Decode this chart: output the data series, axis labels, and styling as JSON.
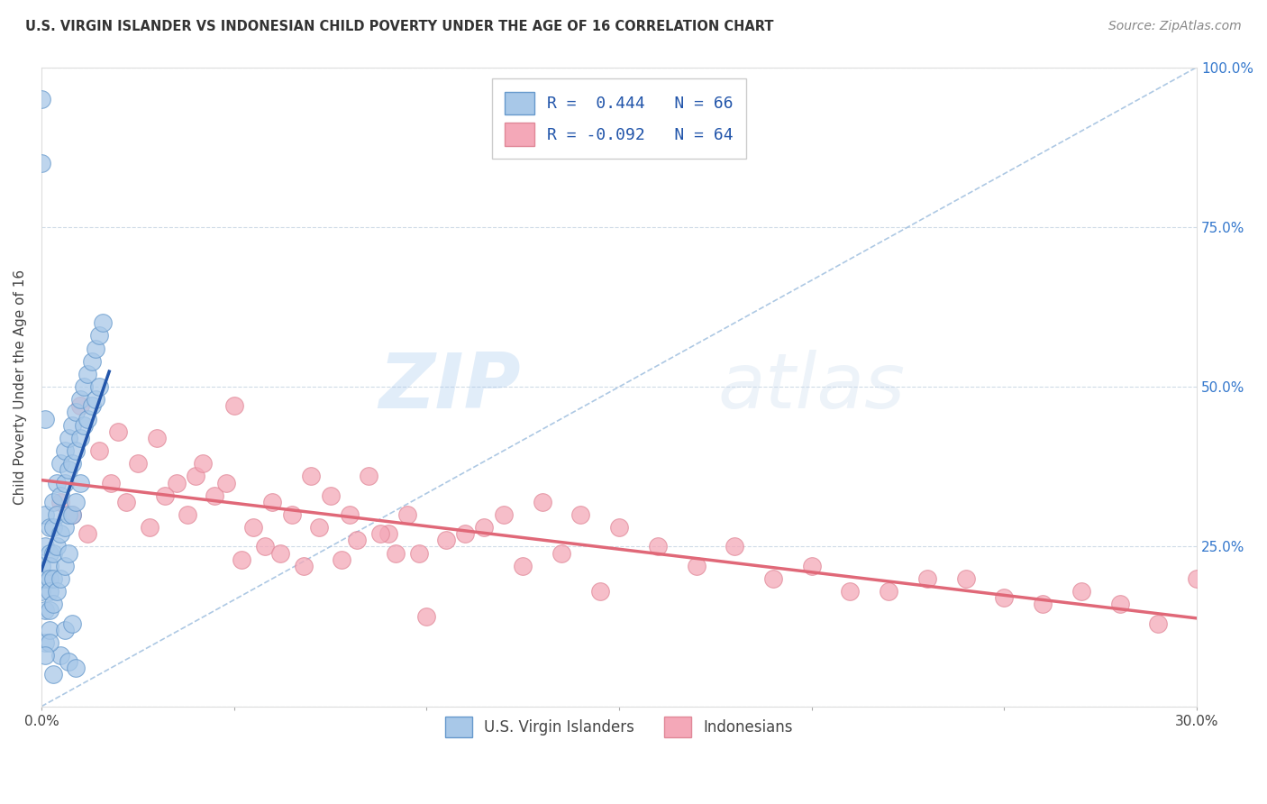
{
  "title": "U.S. VIRGIN ISLANDER VS INDONESIAN CHILD POVERTY UNDER THE AGE OF 16 CORRELATION CHART",
  "source": "Source: ZipAtlas.com",
  "ylabel": "Child Poverty Under the Age of 16",
  "xmin": 0.0,
  "xmax": 0.3,
  "ymin": 0.0,
  "ymax": 1.0,
  "xticks": [
    0.0,
    0.05,
    0.1,
    0.15,
    0.2,
    0.25,
    0.3
  ],
  "yticks": [
    0.0,
    0.25,
    0.5,
    0.75,
    1.0
  ],
  "r_blue": 0.444,
  "n_blue": 66,
  "r_pink": -0.092,
  "n_pink": 64,
  "blue_color": "#A8C8E8",
  "pink_color": "#F4A8B8",
  "blue_edge_color": "#6699CC",
  "pink_edge_color": "#E08898",
  "blue_line_color": "#2255AA",
  "pink_line_color": "#E06878",
  "legend_label_blue": "U.S. Virgin Islanders",
  "legend_label_pink": "Indonesians",
  "watermark_zip": "ZIP",
  "watermark_atlas": "atlas",
  "blue_scatter_x": [
    0.0,
    0.0,
    0.001,
    0.001,
    0.001,
    0.001,
    0.001,
    0.002,
    0.002,
    0.002,
    0.002,
    0.002,
    0.002,
    0.002,
    0.003,
    0.003,
    0.003,
    0.003,
    0.003,
    0.004,
    0.004,
    0.004,
    0.004,
    0.005,
    0.005,
    0.005,
    0.005,
    0.006,
    0.006,
    0.006,
    0.006,
    0.007,
    0.007,
    0.007,
    0.007,
    0.008,
    0.008,
    0.008,
    0.009,
    0.009,
    0.009,
    0.01,
    0.01,
    0.01,
    0.011,
    0.011,
    0.012,
    0.012,
    0.013,
    0.013,
    0.014,
    0.014,
    0.015,
    0.015,
    0.016,
    0.005,
    0.007,
    0.009,
    0.003,
    0.002,
    0.001,
    0.0,
    0.0,
    0.001,
    0.006,
    0.008
  ],
  "blue_scatter_y": [
    0.22,
    0.18,
    0.3,
    0.25,
    0.2,
    0.15,
    0.1,
    0.28,
    0.24,
    0.22,
    0.2,
    0.18,
    0.15,
    0.12,
    0.32,
    0.28,
    0.24,
    0.2,
    0.16,
    0.35,
    0.3,
    0.25,
    0.18,
    0.38,
    0.33,
    0.27,
    0.2,
    0.4,
    0.35,
    0.28,
    0.22,
    0.42,
    0.37,
    0.3,
    0.24,
    0.44,
    0.38,
    0.3,
    0.46,
    0.4,
    0.32,
    0.48,
    0.42,
    0.35,
    0.5,
    0.44,
    0.52,
    0.45,
    0.54,
    0.47,
    0.56,
    0.48,
    0.58,
    0.5,
    0.6,
    0.08,
    0.07,
    0.06,
    0.05,
    0.1,
    0.08,
    0.95,
    0.85,
    0.45,
    0.12,
    0.13
  ],
  "pink_scatter_x": [
    0.01,
    0.015,
    0.02,
    0.025,
    0.03,
    0.035,
    0.04,
    0.045,
    0.05,
    0.055,
    0.06,
    0.065,
    0.07,
    0.075,
    0.08,
    0.085,
    0.09,
    0.095,
    0.1,
    0.11,
    0.12,
    0.13,
    0.14,
    0.15,
    0.16,
    0.17,
    0.18,
    0.19,
    0.2,
    0.21,
    0.22,
    0.23,
    0.24,
    0.25,
    0.26,
    0.27,
    0.28,
    0.29,
    0.3,
    0.005,
    0.008,
    0.012,
    0.018,
    0.022,
    0.028,
    0.032,
    0.038,
    0.042,
    0.048,
    0.052,
    0.058,
    0.062,
    0.068,
    0.072,
    0.078,
    0.082,
    0.088,
    0.092,
    0.098,
    0.105,
    0.115,
    0.125,
    0.135,
    0.145
  ],
  "pink_scatter_y": [
    0.47,
    0.4,
    0.43,
    0.38,
    0.42,
    0.35,
    0.36,
    0.33,
    0.47,
    0.28,
    0.32,
    0.3,
    0.36,
    0.33,
    0.3,
    0.36,
    0.27,
    0.3,
    0.14,
    0.27,
    0.3,
    0.32,
    0.3,
    0.28,
    0.25,
    0.22,
    0.25,
    0.2,
    0.22,
    0.18,
    0.18,
    0.2,
    0.2,
    0.17,
    0.16,
    0.18,
    0.16,
    0.13,
    0.2,
    0.32,
    0.3,
    0.27,
    0.35,
    0.32,
    0.28,
    0.33,
    0.3,
    0.38,
    0.35,
    0.23,
    0.25,
    0.24,
    0.22,
    0.28,
    0.23,
    0.26,
    0.27,
    0.24,
    0.24,
    0.26,
    0.28,
    0.22,
    0.24,
    0.18
  ]
}
